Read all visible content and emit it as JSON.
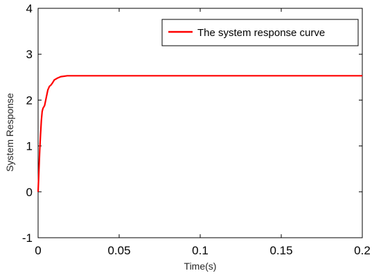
{
  "chart_data": {
    "type": "line",
    "title": "",
    "xlabel": "Time(s)",
    "ylabel": "System Response",
    "xlim": [
      0,
      0.2
    ],
    "ylim": [
      -1,
      4
    ],
    "xticks": [
      0,
      0.05,
      0.1,
      0.15,
      0.2
    ],
    "xtick_labels": [
      "0",
      "0.05",
      "0.1",
      "0.15",
      "0.2"
    ],
    "yticks": [
      -1,
      0,
      1,
      2,
      3,
      4
    ],
    "ytick_labels": [
      "-1",
      "0",
      "1",
      "2",
      "3",
      "4"
    ],
    "grid": false,
    "legend_position": "top-right",
    "series": [
      {
        "name": "The system response curve",
        "color": "#ff0000",
        "x": [
          0,
          0.0005,
          0.001,
          0.0015,
          0.002,
          0.0025,
          0.003,
          0.0035,
          0.004,
          0.005,
          0.006,
          0.007,
          0.008,
          0.009,
          0.01,
          0.012,
          0.014,
          0.016,
          0.018,
          0.02,
          0.025,
          0.03,
          0.05,
          0.1,
          0.15,
          0.2
        ],
        "y": [
          0,
          0.45,
          0.9,
          1.25,
          1.55,
          1.75,
          1.82,
          1.85,
          1.88,
          2.05,
          2.22,
          2.3,
          2.33,
          2.38,
          2.44,
          2.48,
          2.51,
          2.52,
          2.53,
          2.53,
          2.53,
          2.53,
          2.53,
          2.53,
          2.53,
          2.53
        ]
      }
    ]
  }
}
